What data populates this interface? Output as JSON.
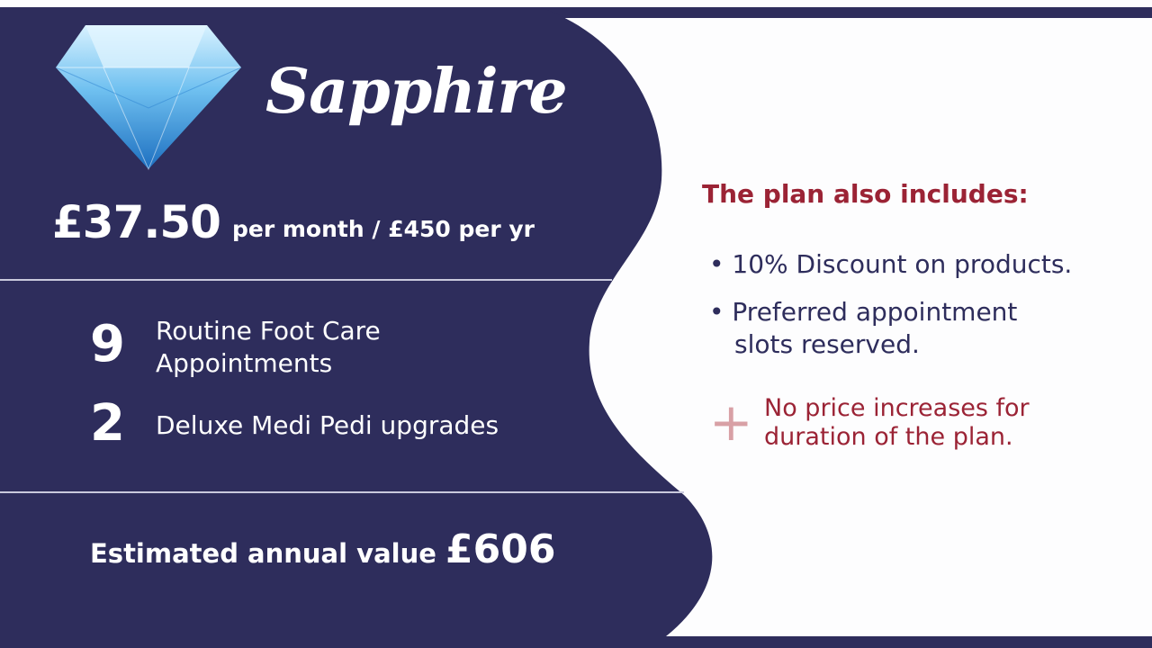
{
  "plan": {
    "name": "Sapphire",
    "price_main": "£37.50",
    "price_sub": "per month / £450 per yr",
    "icon": "diamond-icon"
  },
  "features": [
    {
      "count": "9",
      "label_line1": "Routine Foot Care",
      "label_line2": "Appointments"
    },
    {
      "count": "2",
      "label_line1": "Deluxe Medi Pedi upgrades",
      "label_line2": ""
    }
  ],
  "value": {
    "label": "Estimated annual value",
    "amount": "£606"
  },
  "includes": {
    "title": "The plan also includes:",
    "bullets": [
      {
        "line1": "• 10% Discount on products.",
        "line2": ""
      },
      {
        "line1": "• Preferred appointment",
        "line2": "slots reserved."
      }
    ],
    "plus_icon": "plus-icon",
    "extra_line1": "No price increases for",
    "extra_line2": "duration of the plan."
  },
  "colors": {
    "navy": "#2e2d5c",
    "accent_red": "#9b2335",
    "plus_pink": "#d8a0a5"
  }
}
